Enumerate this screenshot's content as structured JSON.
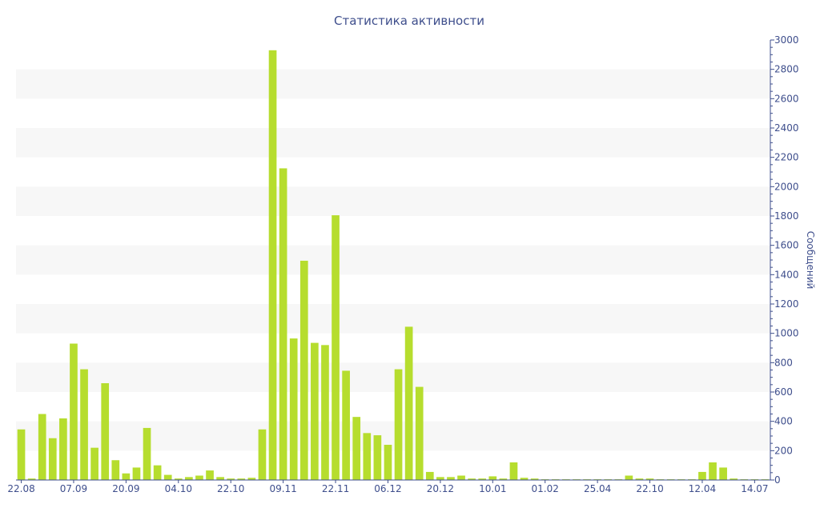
{
  "chart_data": {
    "type": "bar",
    "title": "Статистика активности",
    "ylabel": "Сообщений",
    "xlabel": "",
    "ylim": [
      0,
      3000
    ],
    "yticks": [
      0,
      200,
      400,
      600,
      800,
      1000,
      1200,
      1400,
      1600,
      1800,
      2000,
      2200,
      2400,
      2600,
      2800,
      3000
    ],
    "x_tick_labels": [
      {
        "index": 0,
        "label": "22.08"
      },
      {
        "index": 5,
        "label": "07.09"
      },
      {
        "index": 10,
        "label": "20.09"
      },
      {
        "index": 15,
        "label": "04.10"
      },
      {
        "index": 20,
        "label": "22.10"
      },
      {
        "index": 25,
        "label": "09.11"
      },
      {
        "index": 30,
        "label": "22.11"
      },
      {
        "index": 35,
        "label": "06.12"
      },
      {
        "index": 40,
        "label": "20.12"
      },
      {
        "index": 45,
        "label": "10.01"
      },
      {
        "index": 50,
        "label": "01.02"
      },
      {
        "index": 55,
        "label": "25.04"
      },
      {
        "index": 60,
        "label": "22.10"
      },
      {
        "index": 65,
        "label": "12.04"
      },
      {
        "index": 70,
        "label": "14.07"
      }
    ],
    "values": [
      345,
      10,
      450,
      285,
      420,
      930,
      755,
      220,
      660,
      135,
      45,
      85,
      355,
      100,
      35,
      10,
      20,
      30,
      65,
      20,
      10,
      10,
      15,
      345,
      2930,
      2125,
      965,
      1495,
      935,
      920,
      1805,
      745,
      430,
      320,
      305,
      240,
      755,
      1045,
      635,
      55,
      20,
      20,
      30,
      10,
      10,
      25,
      10,
      120,
      15,
      10,
      5,
      5,
      5,
      5,
      5,
      5,
      5,
      5,
      30,
      10,
      10,
      5,
      5,
      5,
      5,
      55,
      120,
      85,
      10,
      5,
      5,
      5
    ],
    "grid": "alternating horizontal bands",
    "colors": {
      "bar": "#b6dd2e",
      "text": "#3e4e8c",
      "band": "#f7f7f7",
      "axis": "#3e4e8c"
    }
  }
}
